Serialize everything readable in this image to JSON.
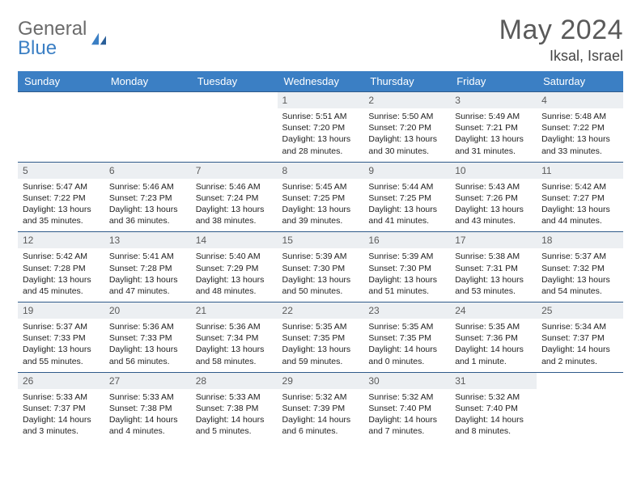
{
  "brand": {
    "part1": "General",
    "part2": "Blue"
  },
  "title": "May 2024",
  "location": "Iksal, Israel",
  "colors": {
    "header_bg": "#3b7fc4",
    "header_text": "#ffffff",
    "daynum_bg": "#eceff2",
    "row_border": "#2f5a8a",
    "logo_gray": "#6b6b6b",
    "logo_blue": "#3b7fc4"
  },
  "weekdays": [
    "Sunday",
    "Monday",
    "Tuesday",
    "Wednesday",
    "Thursday",
    "Friday",
    "Saturday"
  ],
  "weeks": [
    [
      {
        "empty": true
      },
      {
        "empty": true
      },
      {
        "empty": true
      },
      {
        "day": "1",
        "sunrise": "5:51 AM",
        "sunset": "7:20 PM",
        "daylight": "13 hours and 28 minutes."
      },
      {
        "day": "2",
        "sunrise": "5:50 AM",
        "sunset": "7:20 PM",
        "daylight": "13 hours and 30 minutes."
      },
      {
        "day": "3",
        "sunrise": "5:49 AM",
        "sunset": "7:21 PM",
        "daylight": "13 hours and 31 minutes."
      },
      {
        "day": "4",
        "sunrise": "5:48 AM",
        "sunset": "7:22 PM",
        "daylight": "13 hours and 33 minutes."
      }
    ],
    [
      {
        "day": "5",
        "sunrise": "5:47 AM",
        "sunset": "7:22 PM",
        "daylight": "13 hours and 35 minutes."
      },
      {
        "day": "6",
        "sunrise": "5:46 AM",
        "sunset": "7:23 PM",
        "daylight": "13 hours and 36 minutes."
      },
      {
        "day": "7",
        "sunrise": "5:46 AM",
        "sunset": "7:24 PM",
        "daylight": "13 hours and 38 minutes."
      },
      {
        "day": "8",
        "sunrise": "5:45 AM",
        "sunset": "7:25 PM",
        "daylight": "13 hours and 39 minutes."
      },
      {
        "day": "9",
        "sunrise": "5:44 AM",
        "sunset": "7:25 PM",
        "daylight": "13 hours and 41 minutes."
      },
      {
        "day": "10",
        "sunrise": "5:43 AM",
        "sunset": "7:26 PM",
        "daylight": "13 hours and 43 minutes."
      },
      {
        "day": "11",
        "sunrise": "5:42 AM",
        "sunset": "7:27 PM",
        "daylight": "13 hours and 44 minutes."
      }
    ],
    [
      {
        "day": "12",
        "sunrise": "5:42 AM",
        "sunset": "7:28 PM",
        "daylight": "13 hours and 45 minutes."
      },
      {
        "day": "13",
        "sunrise": "5:41 AM",
        "sunset": "7:28 PM",
        "daylight": "13 hours and 47 minutes."
      },
      {
        "day": "14",
        "sunrise": "5:40 AM",
        "sunset": "7:29 PM",
        "daylight": "13 hours and 48 minutes."
      },
      {
        "day": "15",
        "sunrise": "5:39 AM",
        "sunset": "7:30 PM",
        "daylight": "13 hours and 50 minutes."
      },
      {
        "day": "16",
        "sunrise": "5:39 AM",
        "sunset": "7:30 PM",
        "daylight": "13 hours and 51 minutes."
      },
      {
        "day": "17",
        "sunrise": "5:38 AM",
        "sunset": "7:31 PM",
        "daylight": "13 hours and 53 minutes."
      },
      {
        "day": "18",
        "sunrise": "5:37 AM",
        "sunset": "7:32 PM",
        "daylight": "13 hours and 54 minutes."
      }
    ],
    [
      {
        "day": "19",
        "sunrise": "5:37 AM",
        "sunset": "7:33 PM",
        "daylight": "13 hours and 55 minutes."
      },
      {
        "day": "20",
        "sunrise": "5:36 AM",
        "sunset": "7:33 PM",
        "daylight": "13 hours and 56 minutes."
      },
      {
        "day": "21",
        "sunrise": "5:36 AM",
        "sunset": "7:34 PM",
        "daylight": "13 hours and 58 minutes."
      },
      {
        "day": "22",
        "sunrise": "5:35 AM",
        "sunset": "7:35 PM",
        "daylight": "13 hours and 59 minutes."
      },
      {
        "day": "23",
        "sunrise": "5:35 AM",
        "sunset": "7:35 PM",
        "daylight": "14 hours and 0 minutes."
      },
      {
        "day": "24",
        "sunrise": "5:35 AM",
        "sunset": "7:36 PM",
        "daylight": "14 hours and 1 minute."
      },
      {
        "day": "25",
        "sunrise": "5:34 AM",
        "sunset": "7:37 PM",
        "daylight": "14 hours and 2 minutes."
      }
    ],
    [
      {
        "day": "26",
        "sunrise": "5:33 AM",
        "sunset": "7:37 PM",
        "daylight": "14 hours and 3 minutes."
      },
      {
        "day": "27",
        "sunrise": "5:33 AM",
        "sunset": "7:38 PM",
        "daylight": "14 hours and 4 minutes."
      },
      {
        "day": "28",
        "sunrise": "5:33 AM",
        "sunset": "7:38 PM",
        "daylight": "14 hours and 5 minutes."
      },
      {
        "day": "29",
        "sunrise": "5:32 AM",
        "sunset": "7:39 PM",
        "daylight": "14 hours and 6 minutes."
      },
      {
        "day": "30",
        "sunrise": "5:32 AM",
        "sunset": "7:40 PM",
        "daylight": "14 hours and 7 minutes."
      },
      {
        "day": "31",
        "sunrise": "5:32 AM",
        "sunset": "7:40 PM",
        "daylight": "14 hours and 8 minutes."
      },
      {
        "empty": true
      }
    ]
  ]
}
